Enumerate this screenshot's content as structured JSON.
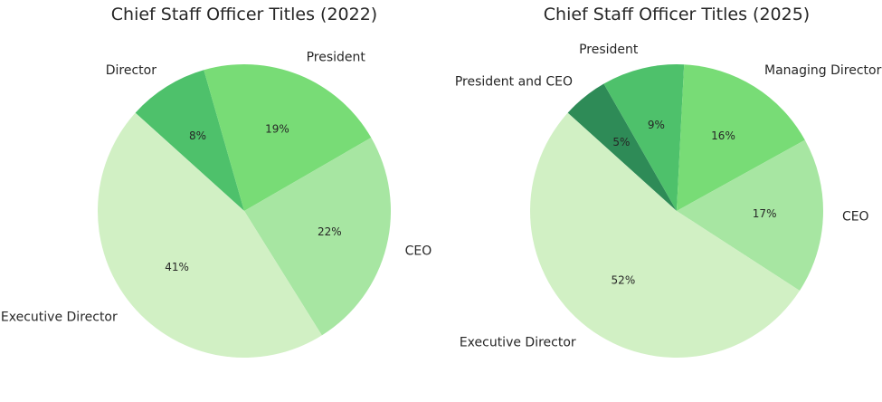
{
  "chart_data": [
    {
      "type": "pie",
      "title": "Chief Staff Officer Titles (2022)",
      "categories": [
        "Director",
        "President",
        "CEO",
        "Executive Director"
      ],
      "values": [
        8,
        19,
        22,
        41
      ],
      "value_labels": [
        "8%",
        "19%",
        "22%",
        "41%"
      ],
      "colors": [
        "#4ec16b",
        "#78dc76",
        "#a7e6a2",
        "#d1f0c4"
      ],
      "direction": "clockwise"
    },
    {
      "type": "pie",
      "title": "Chief Staff Officer Titles (2025)",
      "categories": [
        "President and CEO",
        "President",
        "Managing Director",
        "CEO",
        "Executive Director"
      ],
      "values": [
        5,
        9,
        16,
        17,
        52
      ],
      "value_labels": [
        "5%",
        "9%",
        "16%",
        "17%",
        "52%"
      ],
      "colors": [
        "#2e8b57",
        "#4ec16b",
        "#78dc76",
        "#a7e6a2",
        "#d1f0c4"
      ],
      "direction": "clockwise"
    }
  ]
}
